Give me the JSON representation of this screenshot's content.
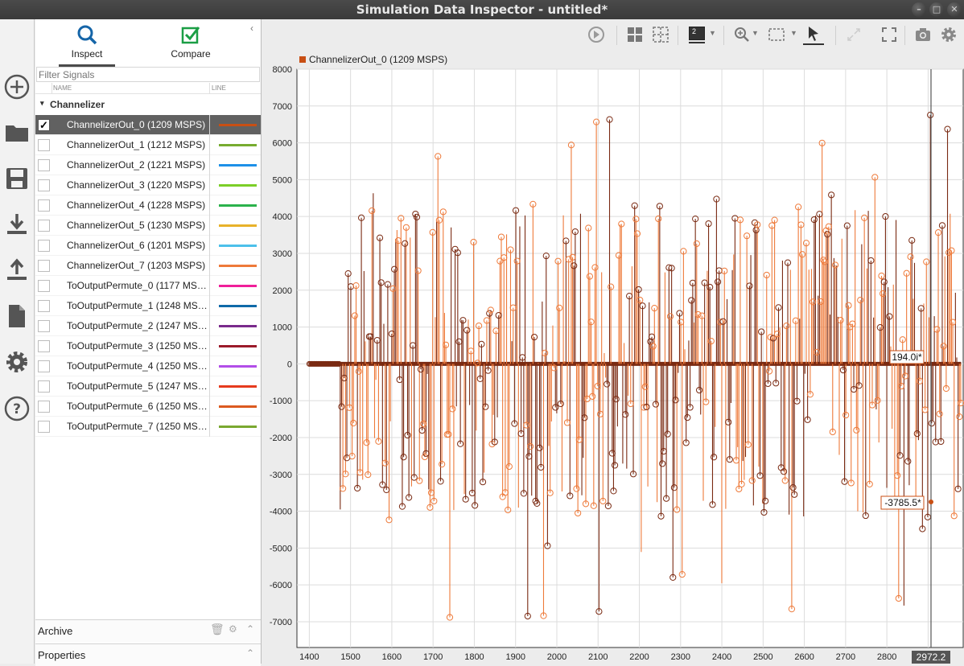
{
  "window": {
    "title": "Simulation Data Inspector - untitled*"
  },
  "rail": {
    "icons": [
      "new-icon",
      "open-folder-icon",
      "save-icon",
      "import-icon",
      "export-icon",
      "report-icon",
      "settings-icon",
      "help-icon"
    ]
  },
  "tabs": {
    "inspect": "Inspect",
    "compare": "Compare"
  },
  "filter": {
    "placeholder": "Filter Signals"
  },
  "columns": {
    "name": "NAME",
    "line": "LINE"
  },
  "group": {
    "label": "Channelizer"
  },
  "signals": [
    {
      "label": "ChannelizerOut_0 (1209 MSPS)",
      "color": "#c84f14",
      "checked": true,
      "selected": true
    },
    {
      "label": "ChannelizerOut_1 (1212 MSPS)",
      "color": "#77ac30"
    },
    {
      "label": "ChannelizerOut_2 (1221 MSPS)",
      "color": "#1e90e8"
    },
    {
      "label": "ChannelizerOut_3 (1220 MSPS)",
      "color": "#7ccf28"
    },
    {
      "label": "ChannelizerOut_4 (1228 MSPS)",
      "color": "#2bb24c"
    },
    {
      "label": "ChannelizerOut_5 (1230 MSPS)",
      "color": "#e8b22a"
    },
    {
      "label": "ChannelizerOut_6 (1201 MSPS)",
      "color": "#4cc0ea"
    },
    {
      "label": "ChannelizerOut_7 (1203 MSPS)",
      "color": "#ee7a3a"
    },
    {
      "label": "ToOutputPermute_0 (1177 MSPS)",
      "color": "#f01f9a"
    },
    {
      "label": "ToOutputPermute_1 (1248 MSPS)",
      "color": "#0f6aa8"
    },
    {
      "label": "ToOutputPermute_2 (1247 MSPS)",
      "color": "#7a2a8c"
    },
    {
      "label": "ToOutputPermute_3 (1250 MSPS)",
      "color": "#9b1a2a"
    },
    {
      "label": "ToOutputPermute_4 (1250 MSPS)",
      "color": "#b24ee8"
    },
    {
      "label": "ToOutputPermute_5 (1247 MSPS)",
      "color": "#e63b1e"
    },
    {
      "label": "ToOutputPermute_6 (1250 MSPS)",
      "color": "#dc5a20"
    },
    {
      "label": "ToOutputPermute_7 (1250 MSPS)",
      "color": "#7aa830"
    }
  ],
  "sections": {
    "archive": "Archive",
    "properties": "Properties"
  },
  "toolbar": {
    "layout_count": "2"
  },
  "chart_data": {
    "type": "line",
    "legend": "ChannelizerOut_0 (1209 MSPS)",
    "xlim": [
      1370,
      2985
    ],
    "ylim": [
      -7700,
      8000
    ],
    "xticks": [
      "1400",
      "1500",
      "1600",
      "1700",
      "1800",
      "1900",
      "2000",
      "2100",
      "2200",
      "2300",
      "2400",
      "2500",
      "2600",
      "2700",
      "2800",
      "2900"
    ],
    "yticks": [
      "8000",
      "7000",
      "6000",
      "5000",
      "4000",
      "3000",
      "2000",
      "1000",
      "0",
      "-1000",
      "-2000",
      "-3000",
      "-4000",
      "-5000",
      "-6000",
      "-7000"
    ],
    "series": [
      {
        "color": "#c84f14",
        "light": "#ee7a3a",
        "dark": "#7a2a12"
      }
    ],
    "cursor": {
      "x": "2972.2",
      "marker_real": "194.0i*",
      "marker_imag": "-3785.5*"
    }
  }
}
